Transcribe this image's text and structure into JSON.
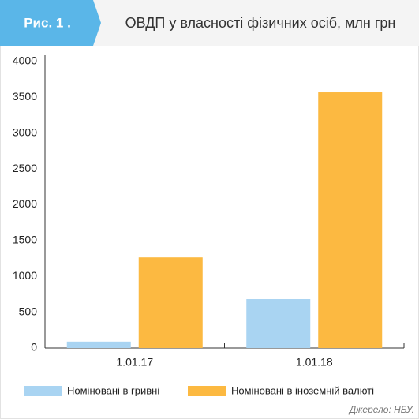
{
  "chart_data": {
    "type": "bar",
    "figure_label": "Рис. 1 .",
    "title": "ОВДП у власності фізичних осіб, млн грн",
    "source": "Джерело: НБУ.",
    "categories": [
      "1.01.17",
      "1.01.18"
    ],
    "series": [
      {
        "name": "Номіновані в гривні",
        "color": "#a9d4f2",
        "values": [
          90,
          683
        ]
      },
      {
        "name": "Номіновані в іноземній валюті",
        "color": "#fcb941",
        "values": [
          1265,
          3570
        ]
      }
    ],
    "ylim": [
      0,
      4000
    ],
    "yticks": [
      0,
      500,
      1000,
      1500,
      2000,
      2500,
      3000,
      3500,
      4000
    ],
    "grid": false
  }
}
